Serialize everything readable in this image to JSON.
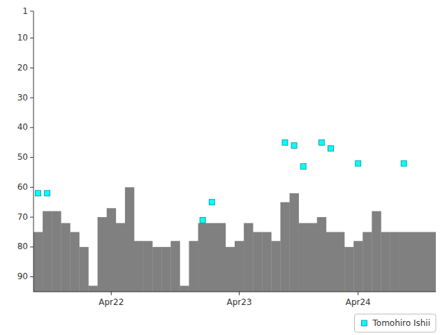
{
  "chart_data": {
    "type": "area",
    "categories": [
      null,
      null,
      null,
      null,
      null,
      null,
      null,
      null,
      "Apr22",
      null,
      null,
      null,
      null,
      null,
      null,
      null,
      null,
      null,
      null,
      null,
      null,
      null,
      "Apr23",
      null,
      null,
      null,
      null,
      null,
      null,
      null,
      null,
      null,
      null,
      null,
      null,
      "Apr24",
      null,
      null,
      null,
      null,
      null,
      null,
      null,
      null
    ],
    "series": [
      {
        "type": "area",
        "color": "#808080",
        "values": [
          75,
          68,
          68,
          72,
          75,
          80,
          93,
          70,
          67,
          72,
          60,
          78,
          78,
          80,
          80,
          78,
          93,
          78,
          72,
          72,
          72,
          80,
          78,
          72,
          75,
          75,
          78,
          65,
          62,
          72,
          72,
          70,
          75,
          75,
          80,
          78,
          75,
          68,
          75,
          75,
          75,
          75,
          75,
          75
        ]
      },
      {
        "name": "Tomohiro Ishii",
        "type": "scatter",
        "color": "#00ffff",
        "marker": "square",
        "values": [
          62,
          62,
          null,
          null,
          null,
          null,
          null,
          null,
          null,
          null,
          null,
          null,
          null,
          null,
          null,
          null,
          null,
          null,
          71,
          65,
          null,
          null,
          null,
          null,
          null,
          null,
          null,
          45,
          46,
          53,
          null,
          45,
          47,
          null,
          null,
          52,
          null,
          null,
          null,
          null,
          52,
          null,
          null,
          null
        ]
      }
    ],
    "ylim": [
      95,
      1
    ],
    "yticks": [
      1,
      10,
      20,
      30,
      40,
      50,
      60,
      70,
      80,
      90
    ],
    "grid": false,
    "legend": "lower right"
  }
}
